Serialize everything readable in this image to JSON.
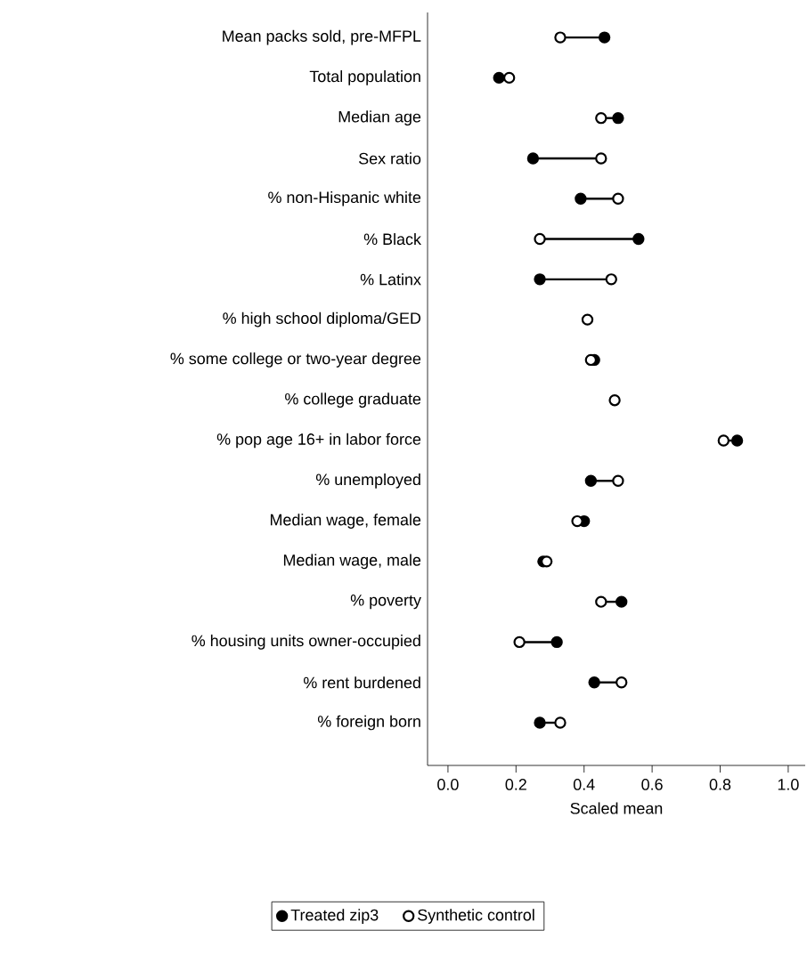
{
  "chart_data": {
    "type": "scatter",
    "orientation": "horizontal",
    "xlabel": "Scaled mean",
    "categories": [
      "Mean packs sold, pre-MFPL",
      "Total population",
      "Median age",
      "Sex ratio",
      "% non-Hispanic white",
      "% Black",
      "% Latinx",
      "% high school diploma/GED",
      "% some college or two-year degree",
      "% college graduate",
      "% pop age 16+ in labor force",
      "% unemployed",
      "Median wage, female",
      "Median wage, male",
      "% poverty",
      "% housing units owner-occupied",
      "% rent burdened",
      "% foreign born"
    ],
    "series": [
      {
        "name": "Treated zip3",
        "color": "#000000",
        "values": [
          0.46,
          0.15,
          0.5,
          0.25,
          0.39,
          0.56,
          0.27,
          null,
          0.43,
          null,
          0.85,
          0.42,
          0.4,
          0.28,
          0.51,
          0.32,
          0.43,
          0.27
        ]
      },
      {
        "name": "Synthetic control",
        "color": "#ffffff",
        "values": [
          0.33,
          0.18,
          0.45,
          0.45,
          0.5,
          0.27,
          0.48,
          0.41,
          0.42,
          0.49,
          0.81,
          0.5,
          0.38,
          0.29,
          0.45,
          0.21,
          0.51,
          0.33
        ]
      }
    ],
    "xlim": [
      -0.06,
      1.05
    ],
    "xticks": [
      {
        "value": 0,
        "label": "0.0"
      },
      {
        "value": 0.2,
        "label": "0.2"
      },
      {
        "value": 0.4,
        "label": "0.4"
      },
      {
        "value": 0.6,
        "label": "0.6"
      },
      {
        "value": 0.8,
        "label": "0.8"
      },
      {
        "value": 1,
        "label": "1.0"
      }
    ],
    "marker": "circle",
    "legend": "bottom"
  }
}
